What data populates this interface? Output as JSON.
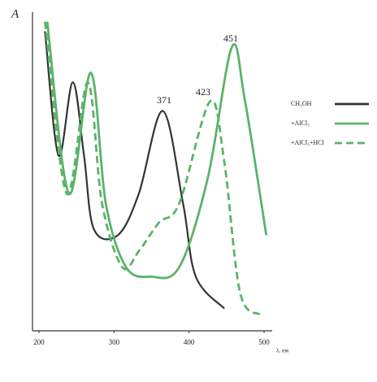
{
  "chart_data": {
    "type": "line",
    "ylabel": "A",
    "xlabel": "λ, нм",
    "xlim": [
      200,
      500
    ],
    "xticks": [
      200,
      300,
      400,
      500
    ],
    "ylim": [
      0,
      1
    ],
    "annotations": [
      "371",
      "423",
      "451"
    ],
    "legend": "right",
    "series": [
      {
        "name": "CH₃OH",
        "color": "#333333",
        "dash": false,
        "x": [
          208,
          226,
          245,
          260,
          273,
          305,
          333,
          365,
          392,
          409,
          447
        ],
        "values": [
          0.94,
          0.55,
          0.78,
          0.55,
          0.32,
          0.3,
          0.43,
          0.69,
          0.4,
          0.17,
          0.07
        ]
      },
      {
        "name": "+AlCl₃",
        "color": "#5bb36a",
        "dash": false,
        "x": [
          211,
          240,
          269,
          289,
          316,
          349,
          387,
          425,
          457,
          474,
          503
        ],
        "values": [
          0.97,
          0.43,
          0.81,
          0.4,
          0.2,
          0.17,
          0.2,
          0.48,
          0.89,
          0.73,
          0.3
        ]
      },
      {
        "name": "+AlCl₃+HCl",
        "color": "#5bb36a",
        "dash": true,
        "x": [
          208,
          237,
          265,
          284,
          311,
          333,
          360,
          387,
          428,
          447,
          468,
          495
        ],
        "values": [
          0.97,
          0.43,
          0.78,
          0.4,
          0.2,
          0.25,
          0.34,
          0.4,
          0.72,
          0.53,
          0.12,
          0.05
        ]
      }
    ]
  }
}
